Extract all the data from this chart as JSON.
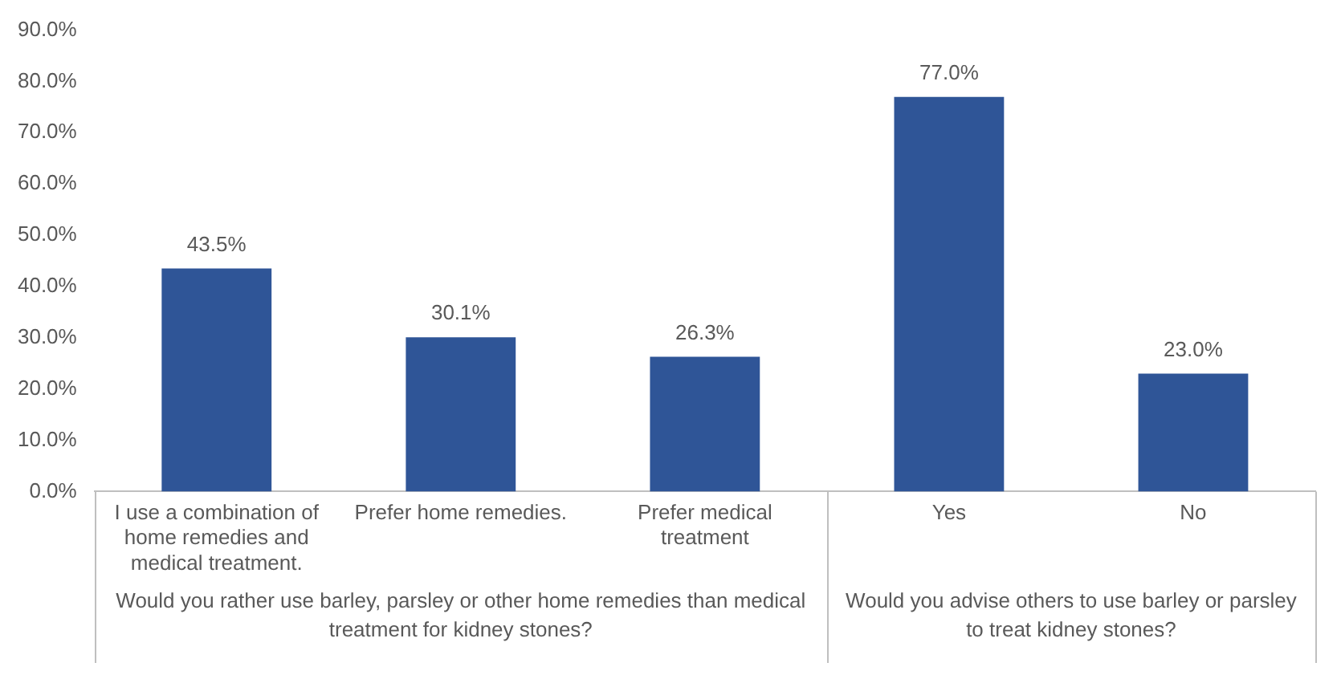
{
  "chart_data": {
    "type": "bar",
    "categories": [
      "I use a combination of home remedies and medical treatment.",
      "Prefer home remedies.",
      "Prefer medical treatment",
      "Yes",
      "No"
    ],
    "values": [
      43.5,
      30.1,
      26.3,
      77.0,
      23.0
    ],
    "value_labels": [
      "43.5%",
      "30.1%",
      "26.3%",
      "77.0%",
      "23.0%"
    ],
    "color": "#2f5597",
    "ylim": [
      0,
      90
    ],
    "yticks": [
      {
        "value": 0,
        "label": "0.0%"
      },
      {
        "value": 10,
        "label": "10.0%"
      },
      {
        "value": 20,
        "label": "20.0%"
      },
      {
        "value": 30,
        "label": "30.0%"
      },
      {
        "value": 40,
        "label": "40.0%"
      },
      {
        "value": 50,
        "label": "50.0%"
      },
      {
        "value": 60,
        "label": "60.0%"
      },
      {
        "value": 70,
        "label": "70.0%"
      },
      {
        "value": 80,
        "label": "80.0%"
      },
      {
        "value": 90,
        "label": "90.0%"
      }
    ],
    "annotations": [
      "Would you rather use barley, parsley or other home remedies than medical treatment for kidney stones?",
      "Would you advise others to use barley or parsley to treat kidney stones?"
    ],
    "grid": false,
    "legend": false
  }
}
